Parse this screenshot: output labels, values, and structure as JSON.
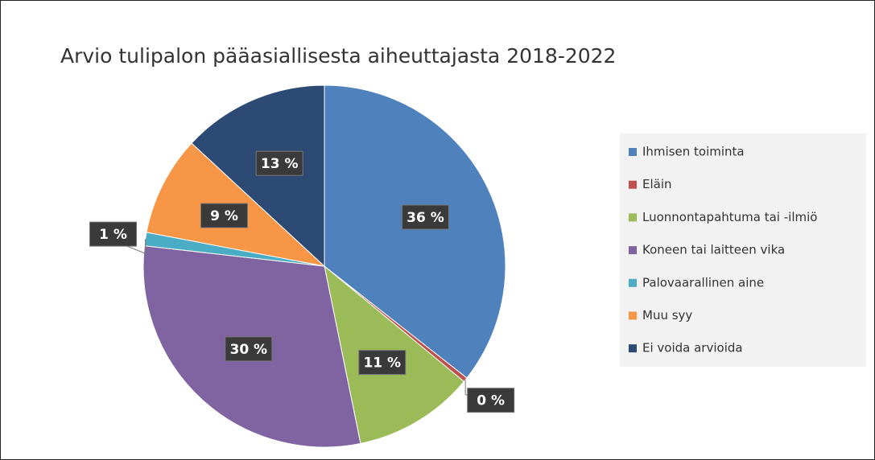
{
  "chart_data": {
    "type": "pie",
    "title": "Arvio tulipalon pääasiallisesta aiheuttajasta 2018-2022",
    "categories": [
      "Ihmisen toiminta",
      "Eläin",
      "Luonnontapahtuma tai -ilmiö",
      "Koneen tai laitteen vika",
      "Palovaarallinen aine",
      "Muu syy",
      "Ei voida arvioida"
    ],
    "values": [
      35.6,
      0.4,
      10.8,
      30.0,
      1.2,
      8.9,
      13.1
    ],
    "value_labels": [
      "36 %",
      "0 %",
      "11 %",
      "30 %",
      "1 %",
      "9 %",
      "13 %"
    ],
    "colors": [
      "#4f81bd",
      "#c0504d",
      "#9bbb59",
      "#8064a2",
      "#4bacc6",
      "#f79646",
      "#2c4a74"
    ],
    "legend": "right"
  }
}
